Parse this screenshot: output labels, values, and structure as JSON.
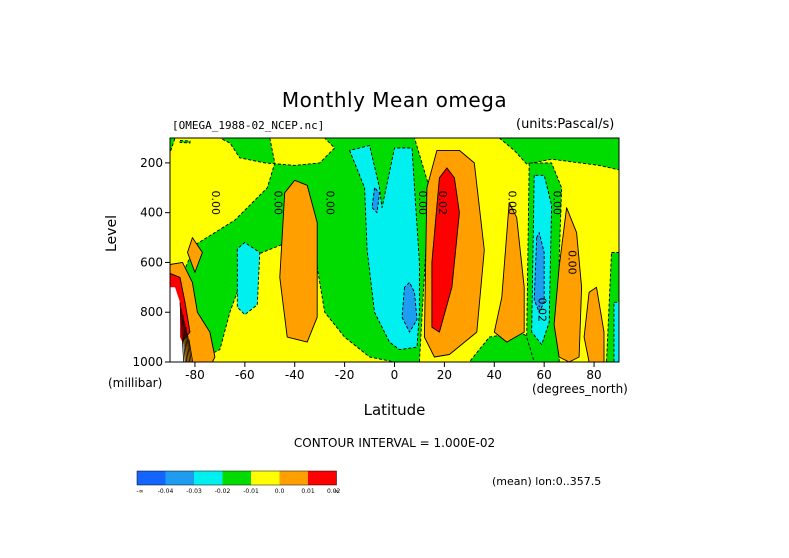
{
  "chart_data": {
    "type": "heatmap",
    "title": "Monthly Mean omega",
    "dataset_label": "[OMEGA_1988-02_NCEP.nc]",
    "units_label": "(units:Pascal/s)",
    "xlabel": "Latitude",
    "x_unit_label": "(degrees_north)",
    "ylabel": "Level",
    "y_unit_label": "(millibar)",
    "xlim": [
      -90,
      90
    ],
    "ylim": [
      100,
      1000
    ],
    "y_inverted": true,
    "x_ticks": [
      -80,
      -60,
      -40,
      -20,
      0,
      20,
      40,
      60,
      80
    ],
    "y_ticks": [
      200,
      400,
      600,
      800,
      1000
    ],
    "contour_interval_text": "CONTOUR INTERVAL = 1.000E-02",
    "averaging_text": "(mean) lon:0..357.5",
    "contour_labels": [
      {
        "text": "0.00",
        "lat": -72,
        "level": 360
      },
      {
        "text": "0.00",
        "lat": -47,
        "level": 360
      },
      {
        "text": "0.00",
        "lat": -26,
        "level": 360
      },
      {
        "text": "0.00",
        "lat": 11,
        "level": 360
      },
      {
        "text": "0.02",
        "lat": 19,
        "level": 360
      },
      {
        "text": "0.00",
        "lat": 47,
        "level": 360
      },
      {
        "text": "0.00",
        "lat": 65,
        "level": 360
      },
      {
        "text": "0.00",
        "lat": 71,
        "level": 600
      },
      {
        "text": "0.02",
        "lat": 59,
        "level": 790
      }
    ],
    "colorbar": {
      "colors": [
        "#1464ff",
        "#1e9cf0",
        "#00f0f0",
        "#00dc00",
        "#ffff00",
        "#ffa000",
        "#ff0000"
      ],
      "labels": [
        "-∞",
        "-0.04",
        "-0.03",
        "-0.02",
        "-0.01",
        "0.0",
        "0.01",
        "0.02",
        "∞"
      ]
    },
    "regions": [
      {
        "value": 0.005,
        "color": "#ffff00",
        "points": [
          [
            -90,
            100
          ],
          [
            90,
            100
          ],
          [
            90,
            1000
          ],
          [
            -90,
            1000
          ]
        ]
      },
      {
        "value": -0.005,
        "color": "#00dc00",
        "points": [
          [
            -91,
            190
          ],
          [
            -88,
            100
          ],
          [
            -91,
            100
          ]
        ]
      },
      {
        "value": -0.005,
        "color": "#00dc00",
        "points": [
          [
            -70,
            100
          ],
          [
            -50,
            100
          ],
          [
            -48,
            200
          ],
          [
            -51,
            300
          ],
          [
            -64,
            430
          ],
          [
            -80,
            530
          ],
          [
            -87,
            700
          ],
          [
            -91,
            800
          ],
          [
            -91,
            1000
          ],
          [
            -80,
            1000
          ],
          [
            -70,
            950
          ],
          [
            -66,
            800
          ],
          [
            -58,
            580
          ],
          [
            -43,
            520
          ],
          [
            -37,
            530
          ],
          [
            -31,
            620
          ],
          [
            -28,
            800
          ],
          [
            -20,
            900
          ],
          [
            -10,
            980
          ],
          [
            0,
            1000
          ],
          [
            -2,
            1030
          ],
          [
            60,
            1030
          ],
          [
            60,
            930
          ],
          [
            50,
            880
          ],
          [
            38,
            900
          ],
          [
            30,
            1000
          ],
          [
            10,
            1000
          ],
          [
            14,
            300
          ],
          [
            8,
            100
          ],
          [
            -28,
            100
          ],
          [
            -24,
            140
          ],
          [
            -30,
            200
          ],
          [
            -40,
            210
          ],
          [
            -52,
            200
          ],
          [
            -62,
            180
          ],
          [
            -66,
            120
          ]
        ]
      },
      {
        "value": -0.005,
        "color": "#00dc00",
        "points": [
          [
            42,
            100
          ],
          [
            48,
            150
          ],
          [
            53,
            205
          ],
          [
            63,
            185
          ],
          [
            82,
            210
          ],
          [
            91,
            230
          ],
          [
            91,
            100
          ]
        ]
      },
      {
        "value": -0.005,
        "color": "#00dc00",
        "points": [
          [
            54,
            200
          ],
          [
            53,
            900
          ],
          [
            56,
            1000
          ],
          [
            66,
            1000
          ],
          [
            67,
            800
          ],
          [
            66,
            600
          ],
          [
            67,
            300
          ],
          [
            63,
            200
          ]
        ]
      },
      {
        "value": -0.005,
        "color": "#00dc00",
        "points": [
          [
            87,
            560
          ],
          [
            91,
            560
          ],
          [
            91,
            1000
          ],
          [
            85,
            1000
          ]
        ]
      },
      {
        "value": -0.005,
        "color": "#00dc00",
        "points": [
          [
            -86,
            110
          ],
          [
            -82,
            112
          ],
          [
            -82,
            120
          ],
          [
            -86,
            118
          ]
        ]
      },
      {
        "value": -0.015,
        "color": "#00f0f0",
        "points": [
          [
            -18,
            150
          ],
          [
            -12,
            300
          ],
          [
            -11,
            550
          ],
          [
            -8,
            800
          ],
          [
            -2,
            920
          ],
          [
            2,
            950
          ],
          [
            9,
            940
          ],
          [
            10,
            800
          ],
          [
            10,
            600
          ],
          [
            8,
            300
          ],
          [
            7,
            140
          ],
          [
            0,
            140
          ],
          [
            -5,
            380
          ],
          [
            -6,
            300
          ],
          [
            -10,
            130
          ]
        ]
      },
      {
        "value": -0.015,
        "color": "#00f0f0",
        "points": [
          [
            -63,
            545
          ],
          [
            -63,
            780
          ],
          [
            -60,
            810
          ],
          [
            -55,
            770
          ],
          [
            -54,
            560
          ],
          [
            -60,
            520
          ]
        ]
      },
      {
        "value": -0.015,
        "color": "#00f0f0",
        "points": [
          [
            56,
            250
          ],
          [
            55,
            880
          ],
          [
            59,
            930
          ],
          [
            62,
            840
          ],
          [
            63,
            370
          ],
          [
            60,
            250
          ]
        ]
      },
      {
        "value": -0.015,
        "color": "#00f0f0",
        "points": [
          [
            88,
            760
          ],
          [
            91,
            760
          ],
          [
            91,
            1000
          ],
          [
            88,
            1000
          ]
        ]
      },
      {
        "value": -0.025,
        "color": "#1e9cf0",
        "points": [
          [
            4,
            700
          ],
          [
            3,
            820
          ],
          [
            6,
            880
          ],
          [
            9,
            830
          ],
          [
            8,
            720
          ],
          [
            6,
            680
          ]
        ]
      },
      {
        "value": -0.025,
        "color": "#1e9cf0",
        "points": [
          [
            57,
            500
          ],
          [
            56,
            750
          ],
          [
            58,
            800
          ],
          [
            60,
            760
          ],
          [
            60,
            560
          ],
          [
            58,
            480
          ]
        ]
      },
      {
        "value": -0.025,
        "color": "#1e9cf0",
        "points": [
          [
            -8,
            300
          ],
          [
            -9,
            380
          ],
          [
            -7,
            400
          ],
          [
            -6,
            320
          ]
        ]
      },
      {
        "value": 0.015,
        "color": "#ffa000",
        "points": [
          [
            13,
            300
          ],
          [
            12,
            900
          ],
          [
            16,
            980
          ],
          [
            22,
            970
          ],
          [
            33,
            880
          ],
          [
            36,
            550
          ],
          [
            32,
            200
          ],
          [
            26,
            150
          ],
          [
            17,
            150
          ]
        ]
      },
      {
        "value": 0.015,
        "color": "#ffa000",
        "points": [
          [
            -44,
            320
          ],
          [
            -46,
            660
          ],
          [
            -43,
            900
          ],
          [
            -35,
            920
          ],
          [
            -31,
            820
          ],
          [
            -31,
            440
          ],
          [
            -35,
            290
          ],
          [
            -40,
            270
          ]
        ]
      },
      {
        "value": 0.015,
        "color": "#ffa000",
        "points": [
          [
            43,
            740
          ],
          [
            40,
            880
          ],
          [
            45,
            920
          ],
          [
            52,
            880
          ],
          [
            52,
            700
          ],
          [
            49,
            420
          ],
          [
            46,
            360
          ]
        ]
      },
      {
        "value": 0.015,
        "color": "#ffa000",
        "points": [
          [
            69,
            380
          ],
          [
            66,
            620
          ],
          [
            64,
            850
          ],
          [
            66,
            980
          ],
          [
            70,
            1000
          ],
          [
            74,
            980
          ],
          [
            75,
            700
          ],
          [
            73,
            480
          ]
        ]
      },
      {
        "value": 0.015,
        "color": "#ffa000",
        "points": [
          [
            78,
            720
          ],
          [
            76,
            900
          ],
          [
            78,
            1000
          ],
          [
            84,
            1000
          ],
          [
            84,
            880
          ],
          [
            81,
            700
          ]
        ]
      },
      {
        "value": 0.015,
        "color": "#ffa000",
        "points": [
          [
            -81,
            500
          ],
          [
            -83,
            560
          ],
          [
            -80,
            640
          ],
          [
            -77,
            560
          ]
        ]
      },
      {
        "value": 0.015,
        "color": "#ffa000",
        "points": [
          [
            -91,
            610
          ],
          [
            -85,
            600
          ],
          [
            -81,
            680
          ],
          [
            -79,
            800
          ],
          [
            -74,
            880
          ],
          [
            -72,
            980
          ],
          [
            -73,
            1000
          ],
          [
            -85,
            1000
          ],
          [
            -91,
            1000
          ]
        ]
      },
      {
        "value": 0.025,
        "color": "#ff0000",
        "points": [
          [
            18,
            260
          ],
          [
            15,
            600
          ],
          [
            15,
            860
          ],
          [
            18,
            880
          ],
          [
            23,
            700
          ],
          [
            26,
            400
          ],
          [
            24,
            260
          ],
          [
            21,
            220
          ]
        ]
      },
      {
        "value": 0.025,
        "color": "#ff0000",
        "points": [
          [
            -91,
            640
          ],
          [
            -86,
            660
          ],
          [
            -84,
            760
          ],
          [
            -82,
            880
          ],
          [
            -88,
            950
          ],
          [
            -91,
            940
          ]
        ]
      }
    ],
    "blank_regions": [
      [
        [
          -91,
          700
        ],
        [
          -88,
          700
        ],
        [
          -86,
          760
        ],
        [
          -86,
          900
        ],
        [
          -84,
          940
        ],
        [
          -84,
          1000
        ],
        [
          -91,
          1000
        ]
      ]
    ]
  }
}
